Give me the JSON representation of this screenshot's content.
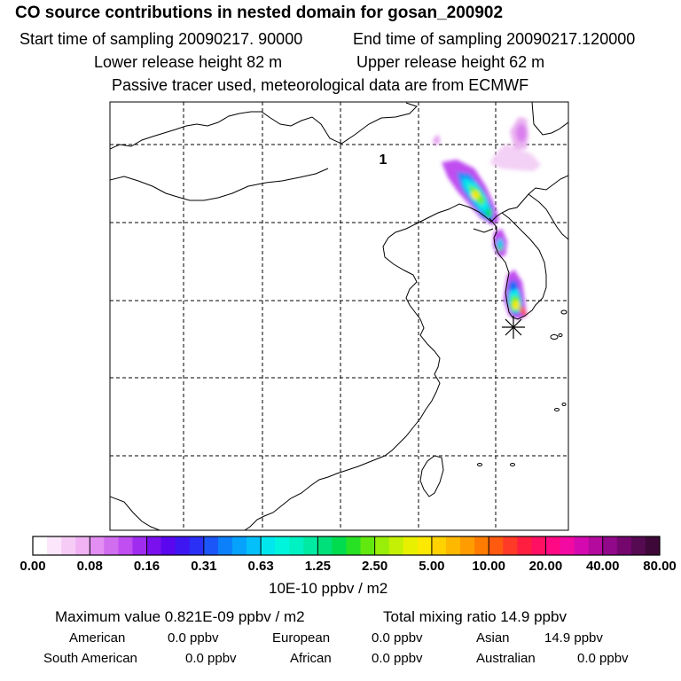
{
  "header": {
    "title": "CO  source contributions in nested domain for gosan_200902",
    "start_sampling": "Start time of sampling 20090217. 90000",
    "end_sampling": "End time of sampling 20090217.120000",
    "lower_release": "Lower release height   82 m",
    "upper_release": "Upper release height   62 m",
    "tracer_note": "Passive tracer used, meteorological data are from ECMWF"
  },
  "map": {
    "panel_label": "1",
    "receptor_marker": "asterisk-icon"
  },
  "colorbar": {
    "colors": [
      "#ffffff",
      "#fbe6fb",
      "#f6ccf6",
      "#f0b2f3",
      "#e28ef2",
      "#d16ef0",
      "#c04ef0",
      "#a02cf0",
      "#7a10ee",
      "#5a06ee",
      "#3e16f2",
      "#2a30f6",
      "#1a56f8",
      "#0c80fa",
      "#06a2fc",
      "#04c0fa",
      "#00e8ee",
      "#00f6dc",
      "#00f2c2",
      "#00eaa2",
      "#00e07a",
      "#00dc4e",
      "#28e024",
      "#62e80e",
      "#98ee08",
      "#c4f006",
      "#e8f000",
      "#fce800",
      "#ffd200",
      "#ffb800",
      "#ff9c00",
      "#ff7c00",
      "#ff5a10",
      "#ff3a26",
      "#ff1e40",
      "#ff1062",
      "#ff0a84",
      "#f20aa2",
      "#d40ab0",
      "#b40a9e",
      "#92088a",
      "#74066e",
      "#560a52",
      "#3e0838"
    ],
    "tick_labels": [
      "0.00",
      "0.08",
      "0.16",
      "0.31",
      "0.63",
      "1.25",
      "2.50",
      "5.00",
      "10.00",
      "20.00",
      "40.00",
      "80.00"
    ],
    "unit": "10E-10 ppbv / m2"
  },
  "summary": {
    "max_value": "Maximum value  0.821E-09 ppbv / m2",
    "total_mixing": "Total mixing ratio       14.9 ppbv",
    "american_label": "American",
    "american_value": "0.0 ppbv",
    "european_label": "European",
    "european_value": "0.0 ppbv",
    "asian_label": "Asian",
    "asian_value": "14.9 ppbv",
    "south_american_label": "South American",
    "south_american_value": "0.0 ppbv",
    "african_label": "African",
    "african_value": "0.0 ppbv",
    "australian_label": "Australian",
    "australian_value": "0.0 ppbv"
  }
}
